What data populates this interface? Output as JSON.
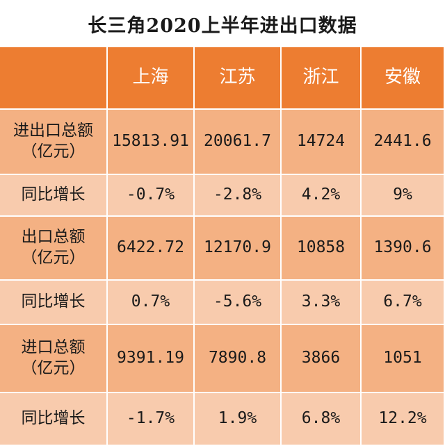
{
  "chart_data": {
    "type": "table",
    "title": "长三角2020上半年进出口数据",
    "columns": [
      "",
      "上海",
      "江苏",
      "浙江",
      "安徽"
    ],
    "rows": [
      {
        "label": "进出口总额\n（亿元）",
        "values": [
          "15813.91",
          "20061.7",
          "14724",
          "2441.6"
        ]
      },
      {
        "label": "同比增长",
        "values": [
          "-0.7%",
          "-2.8%",
          "4.2%",
          "9%"
        ]
      },
      {
        "label": "出口总额\n（亿元）",
        "values": [
          "6422.72",
          "12170.9",
          "10858",
          "1390.6"
        ]
      },
      {
        "label": "同比增长",
        "values": [
          "0.7%",
          "-5.6%",
          "3.3%",
          "6.7%"
        ]
      },
      {
        "label": "进口总额\n（亿元）",
        "values": [
          "9391.19",
          "7890.8",
          "3866",
          "1051"
        ]
      },
      {
        "label": "同比增长",
        "values": [
          "-1.7%",
          "1.9%",
          "6.8%",
          "12.2%"
        ]
      }
    ]
  },
  "colors": {
    "header": "#ed7d31",
    "row_dark": "#f4b183",
    "row_light": "#f8cbad",
    "title_text": "#1a1a1a"
  }
}
